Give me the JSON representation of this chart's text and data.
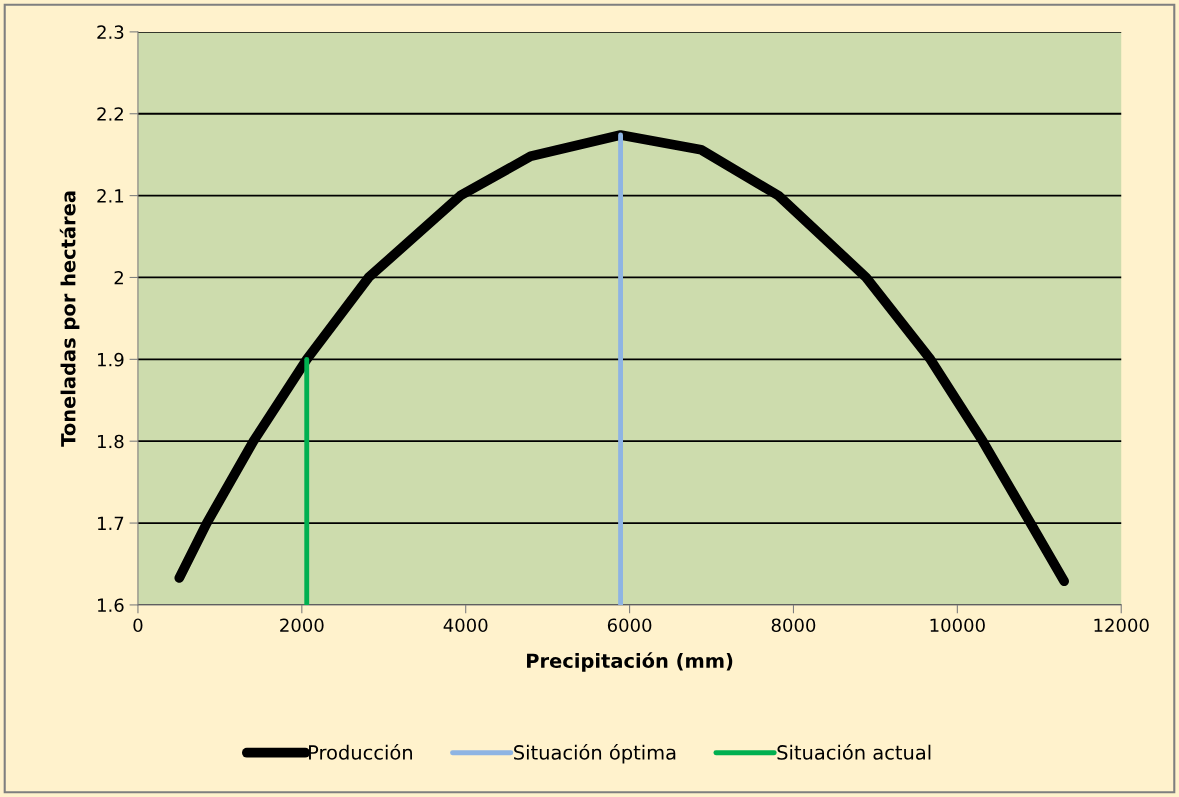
{
  "chart_data": {
    "type": "line",
    "xlabel": "Precipitación (mm)",
    "ylabel": "Toneladas por hectárea",
    "xlim": [
      0,
      12000
    ],
    "xticks": [
      0,
      2000,
      4000,
      6000,
      8000,
      10000,
      12000
    ],
    "ylim": [
      1.6,
      2.3
    ],
    "yticks": [
      1.6,
      1.7,
      1.8,
      1.9,
      2,
      2.1,
      2.2,
      2.3
    ],
    "grid": "y",
    "legend": "bottom",
    "marker": "none",
    "line_style": "solid",
    "series": [
      {
        "name": "Producción",
        "color": "#000000",
        "x": [
          505,
          840,
          1410,
          2060,
          2815,
          3936,
          4792,
          5890,
          6873,
          7817,
          8887,
          9671,
          10310,
          10892,
          11303
        ],
        "values": [
          1.633,
          1.7,
          1.8,
          1.9,
          2.0,
          2.1,
          2.148,
          2.174,
          2.156,
          2.1,
          2.0,
          1.9,
          1.8,
          1.7,
          1.629
        ]
      },
      {
        "name": "Situación óptima",
        "color": "#8eb4e3",
        "x": [
          5890,
          5890
        ],
        "values": [
          1.6,
          2.174
        ]
      },
      {
        "name": "Situación actual",
        "color": "#00b050",
        "x": [
          2060,
          2060
        ],
        "values": [
          1.6,
          1.9
        ]
      }
    ]
  }
}
